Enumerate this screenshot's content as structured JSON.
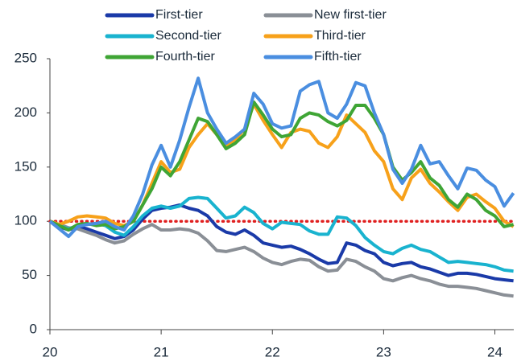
{
  "chart_data": {
    "type": "line",
    "x": [
      20,
      20.083,
      20.167,
      20.25,
      20.333,
      20.417,
      20.5,
      20.583,
      20.667,
      20.75,
      20.833,
      20.917,
      21,
      21.083,
      21.167,
      21.25,
      21.333,
      21.417,
      21.5,
      21.583,
      21.667,
      21.75,
      21.833,
      21.917,
      22,
      22.083,
      22.167,
      22.25,
      22.333,
      22.417,
      22.5,
      22.583,
      22.667,
      22.75,
      22.833,
      22.917,
      23,
      23.083,
      23.167,
      23.25,
      23.333,
      23.417,
      23.5,
      23.583,
      23.667,
      23.75,
      23.833,
      23.917,
      24,
      24.083,
      24.167
    ],
    "series": [
      {
        "name": "First-tier",
        "color": "#1a3aa8",
        "values": [
          100,
          95,
          92,
          95,
          93,
          90,
          87,
          84,
          86,
          92,
          102,
          110,
          112,
          113,
          115,
          112,
          110,
          105,
          95,
          90,
          88,
          92,
          87,
          80,
          78,
          76,
          77,
          74,
          70,
          65,
          61,
          62,
          80,
          78,
          73,
          70,
          62,
          59,
          61,
          62,
          58,
          56,
          53,
          50,
          52,
          52,
          51,
          49,
          47,
          46,
          45
        ]
      },
      {
        "name": "New first-tier",
        "color": "#8a8f96",
        "values": [
          100,
          97,
          94,
          93,
          90,
          87,
          83,
          80,
          82,
          88,
          93,
          97,
          92,
          92,
          93,
          92,
          89,
          82,
          73,
          72,
          74,
          76,
          72,
          66,
          62,
          60,
          63,
          65,
          64,
          58,
          54,
          55,
          65,
          63,
          58,
          54,
          47,
          45,
          48,
          50,
          47,
          45,
          42,
          40,
          40,
          39,
          38,
          36,
          34,
          32,
          31
        ]
      },
      {
        "name": "Second-tier",
        "color": "#19b3cf",
        "values": [
          100,
          96,
          93,
          96,
          97,
          98,
          96,
          90,
          87,
          95,
          105,
          112,
          114,
          112,
          114,
          121,
          122,
          121,
          112,
          103,
          105,
          113,
          108,
          98,
          93,
          99,
          98,
          97,
          91,
          88,
          88,
          104,
          103,
          96,
          85,
          78,
          72,
          70,
          75,
          78,
          74,
          72,
          67,
          62,
          63,
          62,
          61,
          60,
          58,
          55,
          54
        ]
      },
      {
        "name": "Third-tier",
        "color": "#f7a11a",
        "values": [
          100,
          97,
          100,
          104,
          105,
          104,
          103,
          98,
          96,
          100,
          115,
          135,
          155,
          145,
          148,
          168,
          180,
          190,
          180,
          170,
          175,
          185,
          208,
          193,
          180,
          168,
          182,
          185,
          183,
          172,
          168,
          178,
          198,
          190,
          182,
          165,
          155,
          130,
          120,
          140,
          148,
          135,
          127,
          118,
          110,
          122,
          125,
          118,
          112,
          100,
          95
        ]
      },
      {
        "name": "Fourth-tier",
        "color": "#3fa535",
        "values": [
          100,
          96,
          92,
          97,
          98,
          96,
          97,
          93,
          95,
          100,
          115,
          130,
          150,
          142,
          155,
          175,
          195,
          192,
          180,
          167,
          172,
          180,
          210,
          198,
          185,
          178,
          180,
          195,
          200,
          198,
          192,
          188,
          193,
          207,
          207,
          195,
          180,
          150,
          138,
          145,
          155,
          140,
          133,
          120,
          113,
          125,
          120,
          110,
          105,
          95,
          97
        ]
      },
      {
        "name": "Fifth-tier",
        "color": "#4a8ee0",
        "values": [
          100,
          93,
          86,
          95,
          97,
          98,
          100,
          95,
          92,
          105,
          125,
          152,
          170,
          150,
          175,
          205,
          232,
          200,
          185,
          172,
          178,
          185,
          218,
          208,
          190,
          186,
          188,
          220,
          226,
          229,
          200,
          195,
          208,
          228,
          225,
          200,
          180,
          148,
          135,
          148,
          170,
          153,
          155,
          142,
          130,
          149,
          147,
          138,
          132,
          114,
          126
        ]
      }
    ],
    "reference_line": {
      "value": 100,
      "color": "#e02020"
    },
    "xlim": [
      20,
      24.17
    ],
    "xticks": [
      20,
      21,
      22,
      23,
      24
    ],
    "ylim": [
      0,
      250
    ],
    "yticks": [
      0,
      50,
      100,
      150,
      200,
      250
    ]
  }
}
